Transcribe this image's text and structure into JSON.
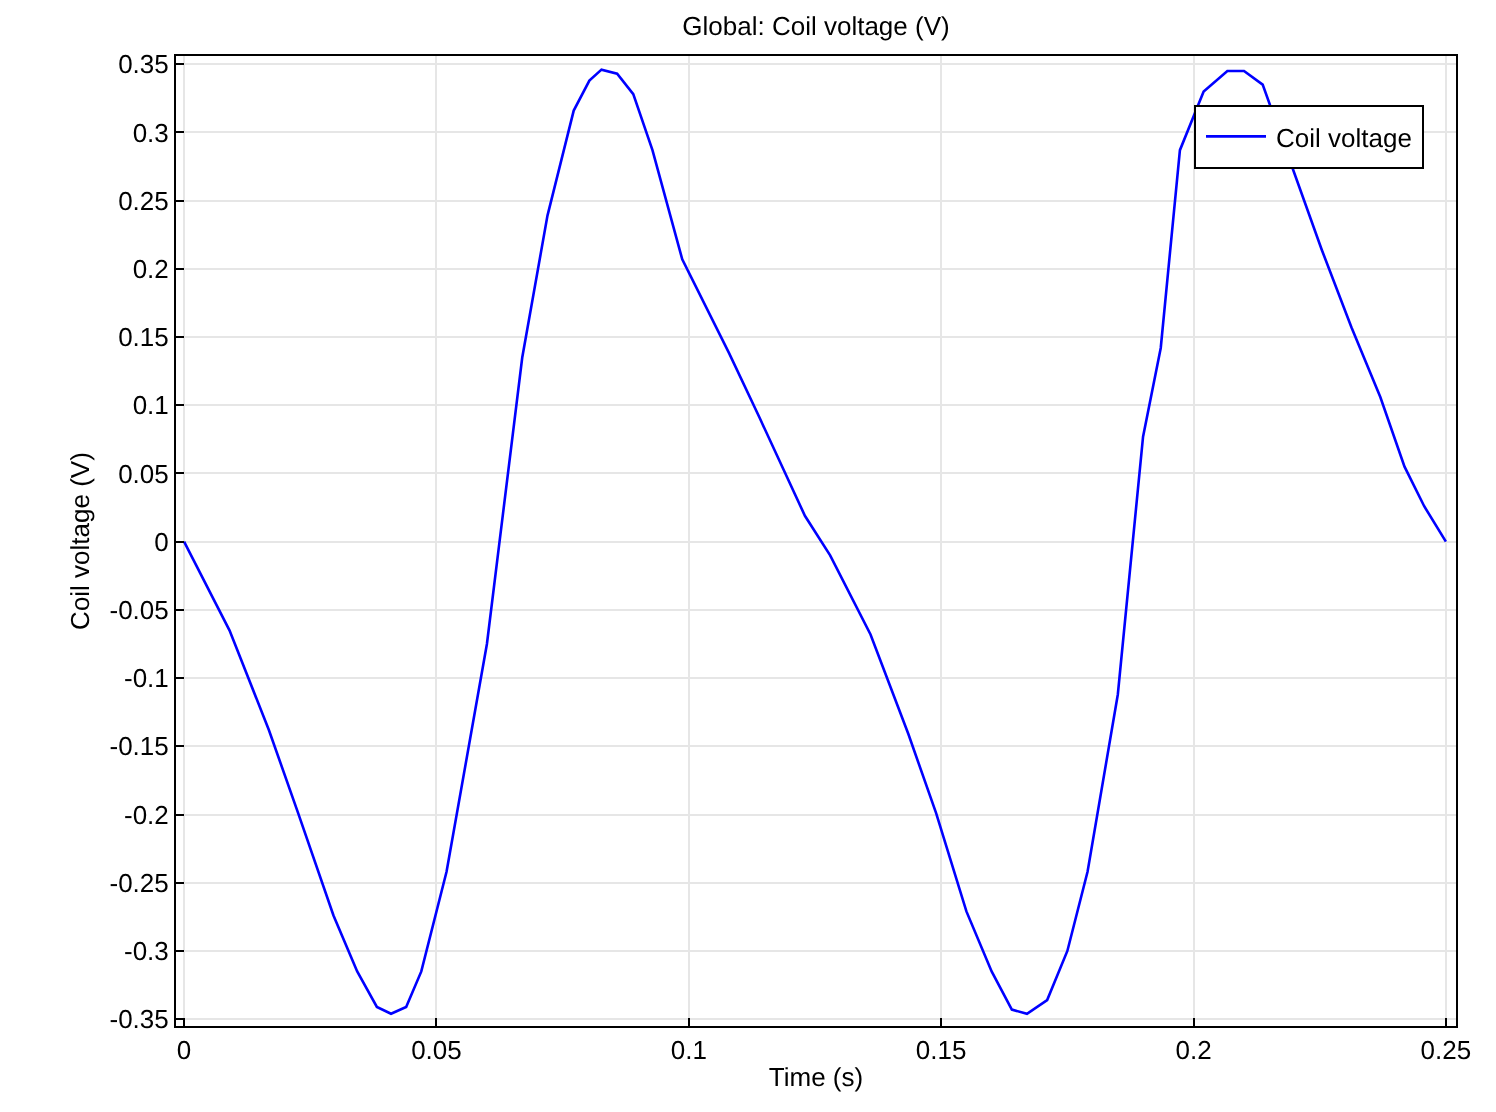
{
  "chart_data": {
    "type": "line",
    "title": "Global: Coil voltage (V)",
    "xlabel": "Time (s)",
    "ylabel": "Coil voltage (V)",
    "x": [
      0,
      0.009,
      0.0168,
      0.0226,
      0.0296,
      0.0343,
      0.0382,
      0.041,
      0.044,
      0.047,
      0.052,
      0.06,
      0.0625,
      0.067,
      0.072,
      0.0772,
      0.0803,
      0.0827,
      0.0858,
      0.089,
      0.0928,
      0.0987,
      0.108,
      0.114,
      0.123,
      0.128,
      0.136,
      0.1435,
      0.149,
      0.155,
      0.16,
      0.164,
      0.167,
      0.171,
      0.175,
      0.179,
      0.185,
      0.19,
      0.1935,
      0.1973,
      0.202,
      0.2067,
      0.21,
      0.2137,
      0.2254,
      0.2313,
      0.237,
      0.2418,
      0.2457,
      0.25
    ],
    "series": [
      {
        "name": "Coil voltage",
        "color": "#0000ff",
        "values": [
          0,
          -0.065,
          -0.138,
          -0.199,
          -0.274,
          -0.315,
          -0.341,
          -0.346,
          -0.341,
          -0.315,
          -0.242,
          -0.075,
          0,
          0.135,
          0.239,
          0.316,
          0.338,
          0.346,
          0.343,
          0.328,
          0.287,
          0.207,
          0.138,
          0.091,
          0.019,
          -0.01,
          -0.068,
          -0.141,
          -0.199,
          -0.271,
          -0.315,
          -0.343,
          -0.346,
          -0.336,
          -0.3,
          -0.242,
          -0.112,
          0.077,
          0.142,
          0.287,
          0.33,
          0.345,
          0.345,
          0.335,
          0.214,
          0.157,
          0.106,
          0.055,
          0.026,
          0
        ]
      }
    ],
    "xlim": [
      -0.0016,
      0.252
    ],
    "ylim": [
      -0.355,
      0.356
    ],
    "xticks": [
      0,
      0.05,
      0.1,
      0.15,
      0.2,
      0.25
    ],
    "yticks": [
      -0.35,
      -0.3,
      -0.25,
      -0.2,
      -0.15,
      -0.1,
      -0.05,
      0,
      0.05,
      0.1,
      0.15,
      0.2,
      0.25,
      0.3,
      0.35
    ],
    "grid": true,
    "legend": "top right",
    "line_style": "solid",
    "marker": "none"
  }
}
